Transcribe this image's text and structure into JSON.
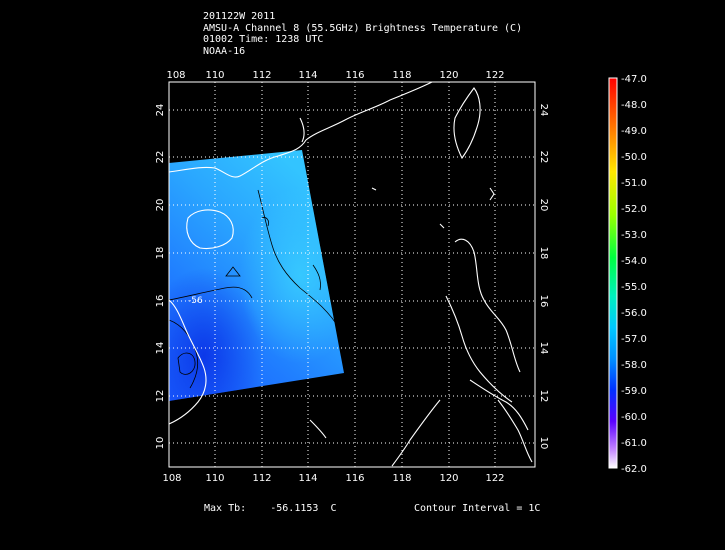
{
  "header": {
    "line1": "201122W 2011",
    "line2": "AMSU-A Channel 8 (55.5GHz) Brightness Temperature (C)",
    "line3": "01002 Time: 1238 UTC",
    "line4": "NOAA-16"
  },
  "map": {
    "lon_ticks": [
      "108",
      "110",
      "112",
      "114",
      "116",
      "118",
      "120",
      "122"
    ],
    "lat_ticks": [
      "10",
      "12",
      "14",
      "16",
      "18",
      "20",
      "22",
      "24"
    ],
    "contour_label": "-56"
  },
  "colorbar": {
    "labels": [
      "-47.0",
      "-48.0",
      "-49.0",
      "-50.0",
      "-51.0",
      "-52.0",
      "-53.0",
      "-54.0",
      "-55.0",
      "-56.0",
      "-57.0",
      "-58.0",
      "-59.0",
      "-60.0",
      "-61.0",
      "-62.0"
    ]
  },
  "footer": {
    "max_label": "Max Tb:",
    "max_value": "-56.1153",
    "max_unit": "C",
    "contour_interval": "Contour Interval = 1C"
  }
}
